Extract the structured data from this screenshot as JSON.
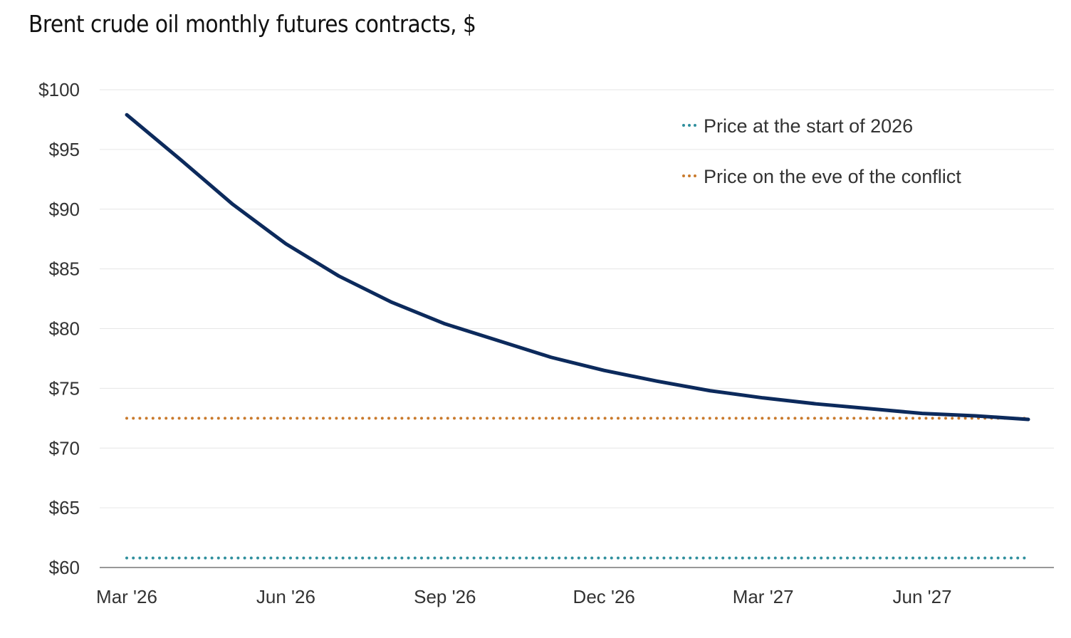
{
  "chart_data": {
    "type": "line",
    "title": "Brent crude oil monthly futures contracts, $",
    "xlabel": "",
    "ylabel": "",
    "ylim": [
      60,
      100
    ],
    "yticks": [
      60,
      65,
      70,
      75,
      80,
      85,
      90,
      95,
      100
    ],
    "ytick_labels": [
      "$60",
      "$65",
      "$70",
      "$75",
      "$80",
      "$85",
      "$90",
      "$95",
      "$100"
    ],
    "x": [
      "Mar '26",
      "Apr '26",
      "May '26",
      "Jun '26",
      "Jul '26",
      "Aug '26",
      "Sep '26",
      "Oct '26",
      "Nov '26",
      "Dec '26",
      "Jan '27",
      "Feb '27",
      "Mar '27",
      "Apr '27",
      "May '27",
      "Jun '27",
      "Jul '27",
      "Aug '27"
    ],
    "xtick_labels": [
      "Mar '26",
      "Jun '26",
      "Sep '26",
      "Dec '26",
      "Mar '27",
      "Jun '27"
    ],
    "grid": true,
    "legend_position": "top-right",
    "series": [
      {
        "values": [
          97.9,
          94.2,
          90.4,
          87.1,
          84.4,
          82.2,
          80.4,
          79.0,
          77.6,
          76.5,
          75.6,
          74.8,
          74.2,
          73.7,
          73.3,
          72.9,
          72.7,
          72.4
        ],
        "color": "#0c2a5c",
        "style": "solid"
      },
      {
        "name": "Price at the start of 2026",
        "value": 60.8,
        "color": "#2f8f9d",
        "style": "dotted"
      },
      {
        "name": "Price on the eve of the conflict",
        "value": 72.5,
        "color": "#c97a2c",
        "style": "dotted"
      }
    ]
  }
}
